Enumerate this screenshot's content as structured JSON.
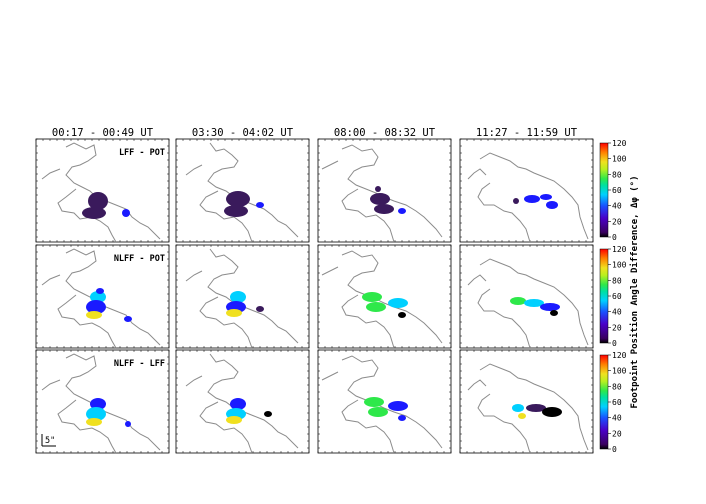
{
  "chart_data": {
    "type": "heatmap",
    "columns": [
      "00:17 - 00:49 UT",
      "03:30 - 04:02 UT",
      "08:00 - 08:32 UT",
      "11:27 - 11:59 UT"
    ],
    "rows": [
      "LFF - POT",
      "NLFF - POT",
      "NLFF - LFF"
    ],
    "colorbar": {
      "label": "Footpoint Position Angle Difference, Δφ (°)",
      "range": [
        0,
        120
      ],
      "ticks": [
        "120",
        "100",
        "80",
        "60",
        "40",
        "20",
        "0"
      ]
    },
    "scale_label": "5\"",
    "grid": false
  },
  "colors": {
    "outline": "#8c8c8c",
    "dark_purple": "#3a1a5c",
    "blue": "#1a1aff",
    "cyan": "#00d0ff",
    "green": "#2ee84a",
    "yellow": "#f0e020",
    "black": "#000000"
  }
}
